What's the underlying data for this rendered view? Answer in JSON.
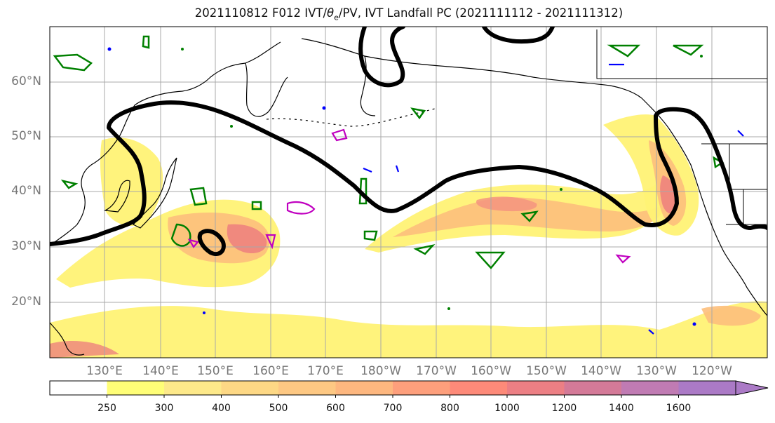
{
  "title": {
    "prefix": "2021110812 F012 IVT/",
    "theta": "θ",
    "theta_sub": "e",
    "suffix": "/PV, IVT Landfall PC (2021111112 - 2021111312)"
  },
  "axes": {
    "lat_labels": [
      "60°N",
      "50°N",
      "40°N",
      "30°N",
      "20°N"
    ],
    "lon_labels": [
      "130°E",
      "140°E",
      "150°E",
      "160°E",
      "170°E",
      "180°W",
      "170°W",
      "160°W",
      "150°W",
      "140°W",
      "130°W",
      "120°W"
    ]
  },
  "colorbar": {
    "levels": [
      "250",
      "300",
      "400",
      "500",
      "600",
      "700",
      "800",
      "1000",
      "1200",
      "1400",
      "1600"
    ],
    "colors": [
      "#ffffff",
      "#fffe77",
      "#fde98a",
      "#fdd885",
      "#fdc883",
      "#fdb77f",
      "#fd9f7c",
      "#fd8a79",
      "#ec7f84",
      "#d47a98",
      "#c07bb3",
      "#ab7ac6"
    ]
  },
  "colors": {
    "ivt_light": "#fff275",
    "ivt_mid": "#fdbf7c",
    "ivt_high": "#f59480",
    "ivt_peak": "#ec7b7e",
    "coast": "#000000",
    "grid": "#a8a8a8",
    "contour_black": "#000000",
    "contour_green": "#008000",
    "contour_blue": "#0000ff",
    "contour_magenta": "#c000c0"
  }
}
